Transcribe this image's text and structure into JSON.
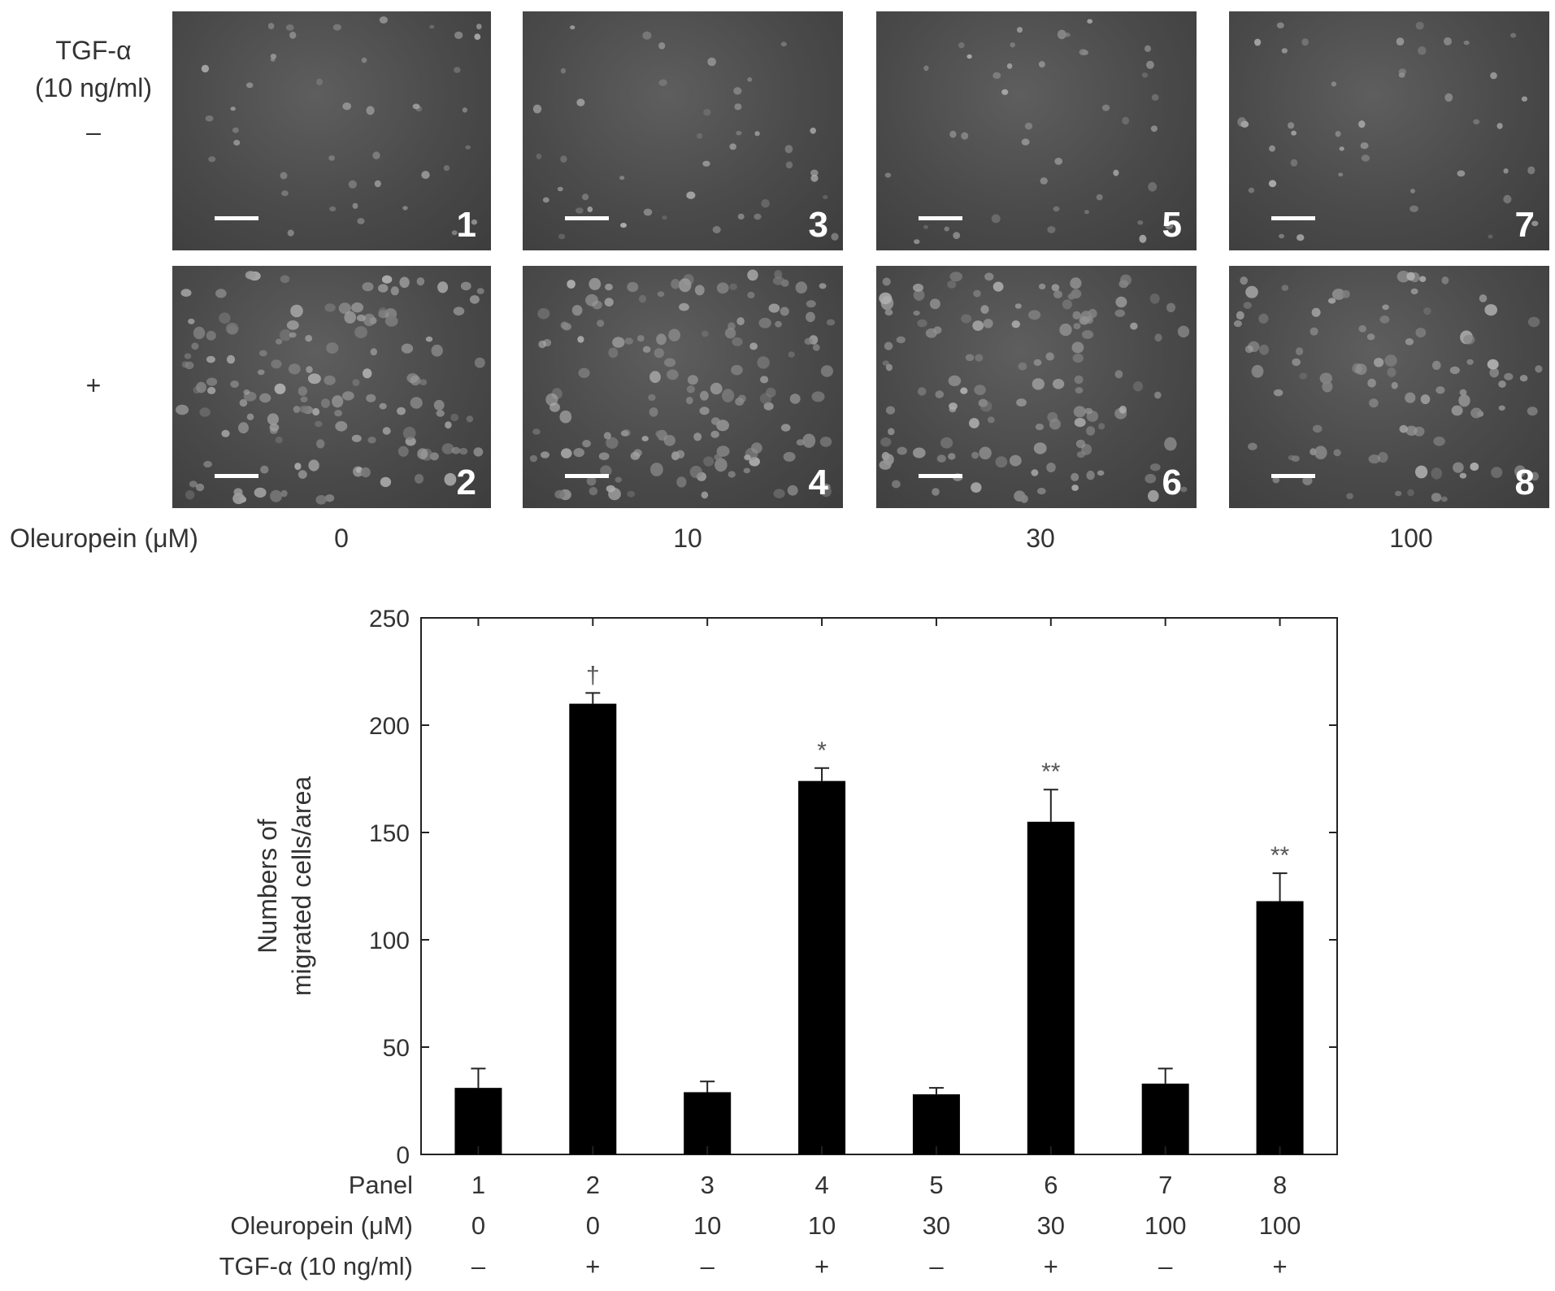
{
  "figure": {
    "row_header_top": "TGF-α",
    "row_header_sub": "(10 ng/ml)",
    "row_minus": "–",
    "row_plus": "+",
    "col_axis_label": "Oleuropein (μM)",
    "concentrations": [
      "0",
      "10",
      "30",
      "100"
    ],
    "panels": [
      {
        "label": "1",
        "tgf": "–",
        "oleuropein": "0",
        "density": "low"
      },
      {
        "label": "2",
        "tgf": "+",
        "oleuropein": "0",
        "density": "high"
      },
      {
        "label": "3",
        "tgf": "–",
        "oleuropein": "10",
        "density": "low"
      },
      {
        "label": "4",
        "tgf": "+",
        "oleuropein": "10",
        "density": "high"
      },
      {
        "label": "5",
        "tgf": "–",
        "oleuropein": "30",
        "density": "low"
      },
      {
        "label": "6",
        "tgf": "+",
        "oleuropein": "30",
        "density": "medium-high"
      },
      {
        "label": "7",
        "tgf": "–",
        "oleuropein": "100",
        "density": "low"
      },
      {
        "label": "8",
        "tgf": "+",
        "oleuropein": "100",
        "density": "medium"
      }
    ]
  },
  "chart_data": {
    "type": "bar",
    "ylabel_line1": "Numbers of",
    "ylabel_line2": "migrated cells/area",
    "ylim": [
      0,
      250
    ],
    "yticks": [
      "0",
      "50",
      "100",
      "150",
      "200",
      "250"
    ],
    "categories": [
      "1",
      "2",
      "3",
      "4",
      "5",
      "6",
      "7",
      "8"
    ],
    "values": [
      31,
      210,
      29,
      174,
      28,
      155,
      33,
      118
    ],
    "errors": [
      9,
      5,
      5,
      6,
      3,
      15,
      7,
      13
    ],
    "annotations": [
      "",
      "†",
      "",
      "*",
      "",
      "**",
      "",
      "**"
    ],
    "bar_color": "#000000",
    "table_rows": [
      {
        "label": "Panel",
        "values": [
          "1",
          "2",
          "3",
          "4",
          "5",
          "6",
          "7",
          "8"
        ]
      },
      {
        "label": "Oleuropein (μM)",
        "values": [
          "0",
          "0",
          "10",
          "10",
          "30",
          "30",
          "100",
          "100"
        ]
      },
      {
        "label": "TGF-α (10 ng/ml)",
        "values": [
          "–",
          "+",
          "–",
          "+",
          "–",
          "+",
          "–",
          "+"
        ]
      }
    ]
  }
}
